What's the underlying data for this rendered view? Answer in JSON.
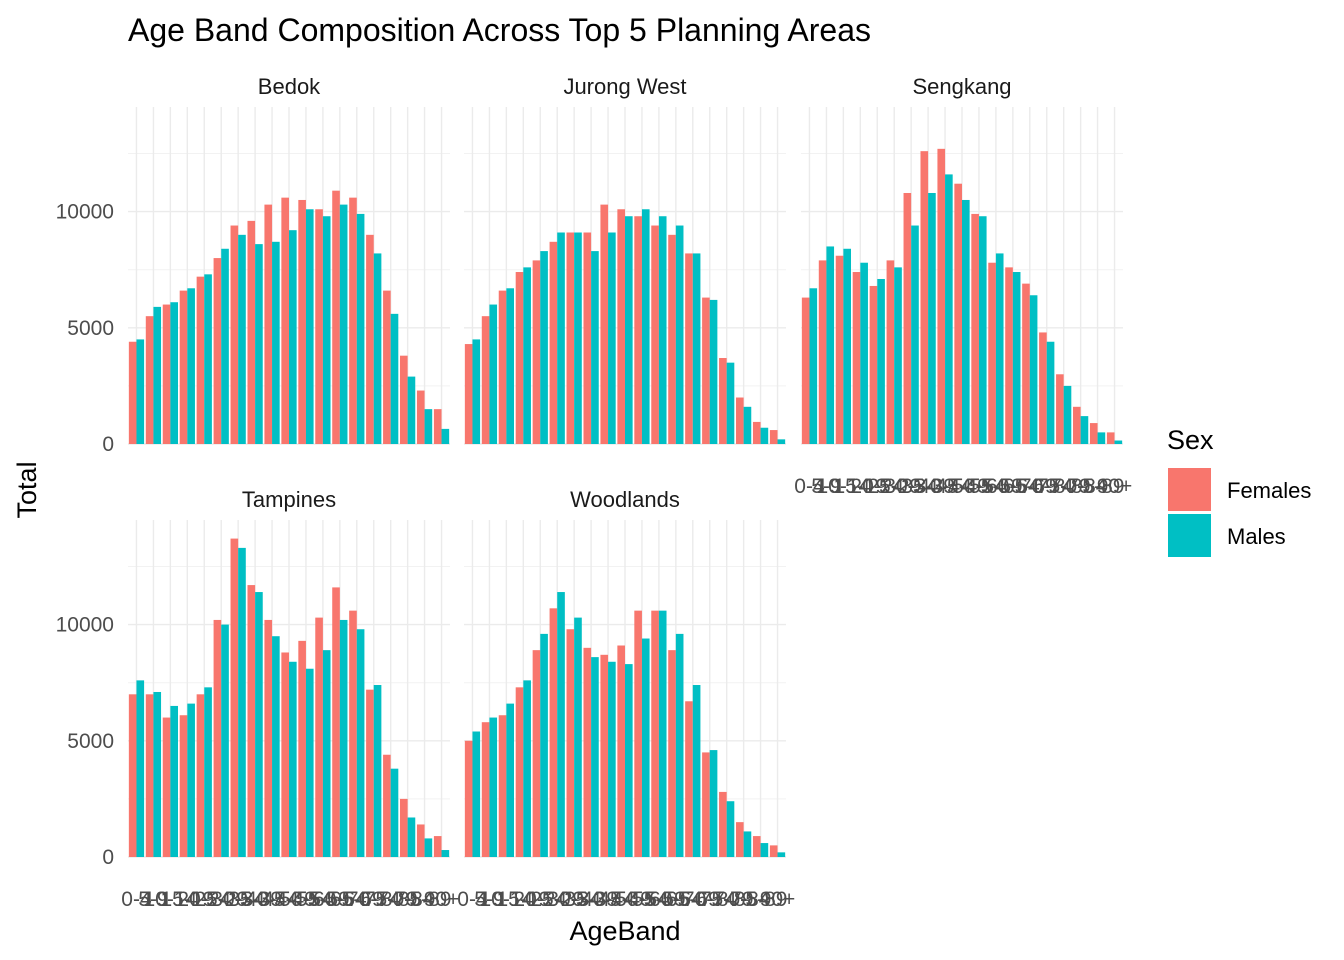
{
  "chart_data": {
    "type": "bar",
    "title": "Age Band Composition Across Top 5 Planning Areas",
    "xlabel": "AgeBand",
    "ylabel": "Total",
    "ylim": [
      0,
      14500
    ],
    "y_ticks": [
      "0",
      "5000",
      "10000"
    ],
    "y_tick_values": [
      0,
      5000,
      10000
    ],
    "grid": true,
    "legend": {
      "title": "Sex",
      "position": "right",
      "entries": [
        {
          "name": "Females",
          "color": "#F8766D"
        },
        {
          "name": "Males",
          "color": "#00BFC4"
        }
      ]
    },
    "categories": [
      "0-4",
      "5-9",
      "10-14",
      "15-19",
      "20-24",
      "25-29",
      "30-34",
      "35-39",
      "40-44",
      "45-49",
      "50-54",
      "55-59",
      "60-64",
      "65-69",
      "70-74",
      "75-79",
      "80-84",
      "85-89",
      "90+"
    ],
    "facets": [
      {
        "name": "Bedok",
        "series": [
          {
            "name": "Females",
            "values": [
              4400,
              5500,
              6000,
              6600,
              7200,
              8000,
              9400,
              9600,
              10300,
              10600,
              10500,
              10100,
              10900,
              10600,
              9000,
              6600,
              3800,
              2300,
              1500
            ]
          },
          {
            "name": "Males",
            "values": [
              4500,
              5900,
              6100,
              6700,
              7300,
              8400,
              9000,
              8600,
              8700,
              9200,
              10100,
              9800,
              10300,
              9900,
              8200,
              5600,
              2900,
              1500,
              650
            ]
          }
        ]
      },
      {
        "name": "Jurong West",
        "series": [
          {
            "name": "Females",
            "values": [
              4300,
              5500,
              6600,
              7400,
              7900,
              8700,
              9100,
              9100,
              10300,
              10100,
              9800,
              9400,
              9000,
              8200,
              6300,
              3700,
              2000,
              950,
              600
            ]
          },
          {
            "name": "Males",
            "values": [
              4500,
              6000,
              6700,
              7600,
              8300,
              9100,
              9100,
              8300,
              9100,
              9800,
              10100,
              9800,
              9400,
              8200,
              6200,
              3500,
              1600,
              700,
              200
            ]
          }
        ]
      },
      {
        "name": "Sengkang",
        "series": [
          {
            "name": "Females",
            "values": [
              6300,
              7900,
              8100,
              7400,
              6800,
              7900,
              10800,
              12600,
              12700,
              11200,
              9900,
              7800,
              7600,
              6900,
              4800,
              3000,
              1600,
              900,
              500
            ]
          },
          {
            "name": "Males",
            "values": [
              6700,
              8500,
              8400,
              7800,
              7100,
              7600,
              9400,
              10800,
              11600,
              10500,
              9800,
              8200,
              7400,
              6400,
              4400,
              2500,
              1200,
              500,
              150
            ]
          }
        ]
      },
      {
        "name": "Tampines",
        "series": [
          {
            "name": "Females",
            "values": [
              7000,
              7000,
              6000,
              6100,
              7000,
              10200,
              13700,
              11700,
              10200,
              8800,
              9300,
              10300,
              11600,
              10600,
              7200,
              4400,
              2500,
              1400,
              900
            ]
          },
          {
            "name": "Males",
            "values": [
              7600,
              7100,
              6500,
              6600,
              7300,
              10000,
              13300,
              11400,
              9500,
              8400,
              8100,
              8900,
              10200,
              9800,
              7400,
              3800,
              1700,
              800,
              300
            ]
          }
        ]
      },
      {
        "name": "Woodlands",
        "series": [
          {
            "name": "Females",
            "values": [
              5000,
              5800,
              6100,
              7300,
              8900,
              10700,
              9800,
              9000,
              8700,
              9100,
              10600,
              10600,
              8900,
              6700,
              4500,
              2800,
              1500,
              900,
              500
            ]
          },
          {
            "name": "Males",
            "values": [
              5400,
              6000,
              6600,
              7600,
              9600,
              11400,
              10300,
              8600,
              8400,
              8300,
              9400,
              10600,
              9600,
              7400,
              4600,
              2400,
              1100,
              600,
              200
            ]
          }
        ]
      }
    ]
  }
}
